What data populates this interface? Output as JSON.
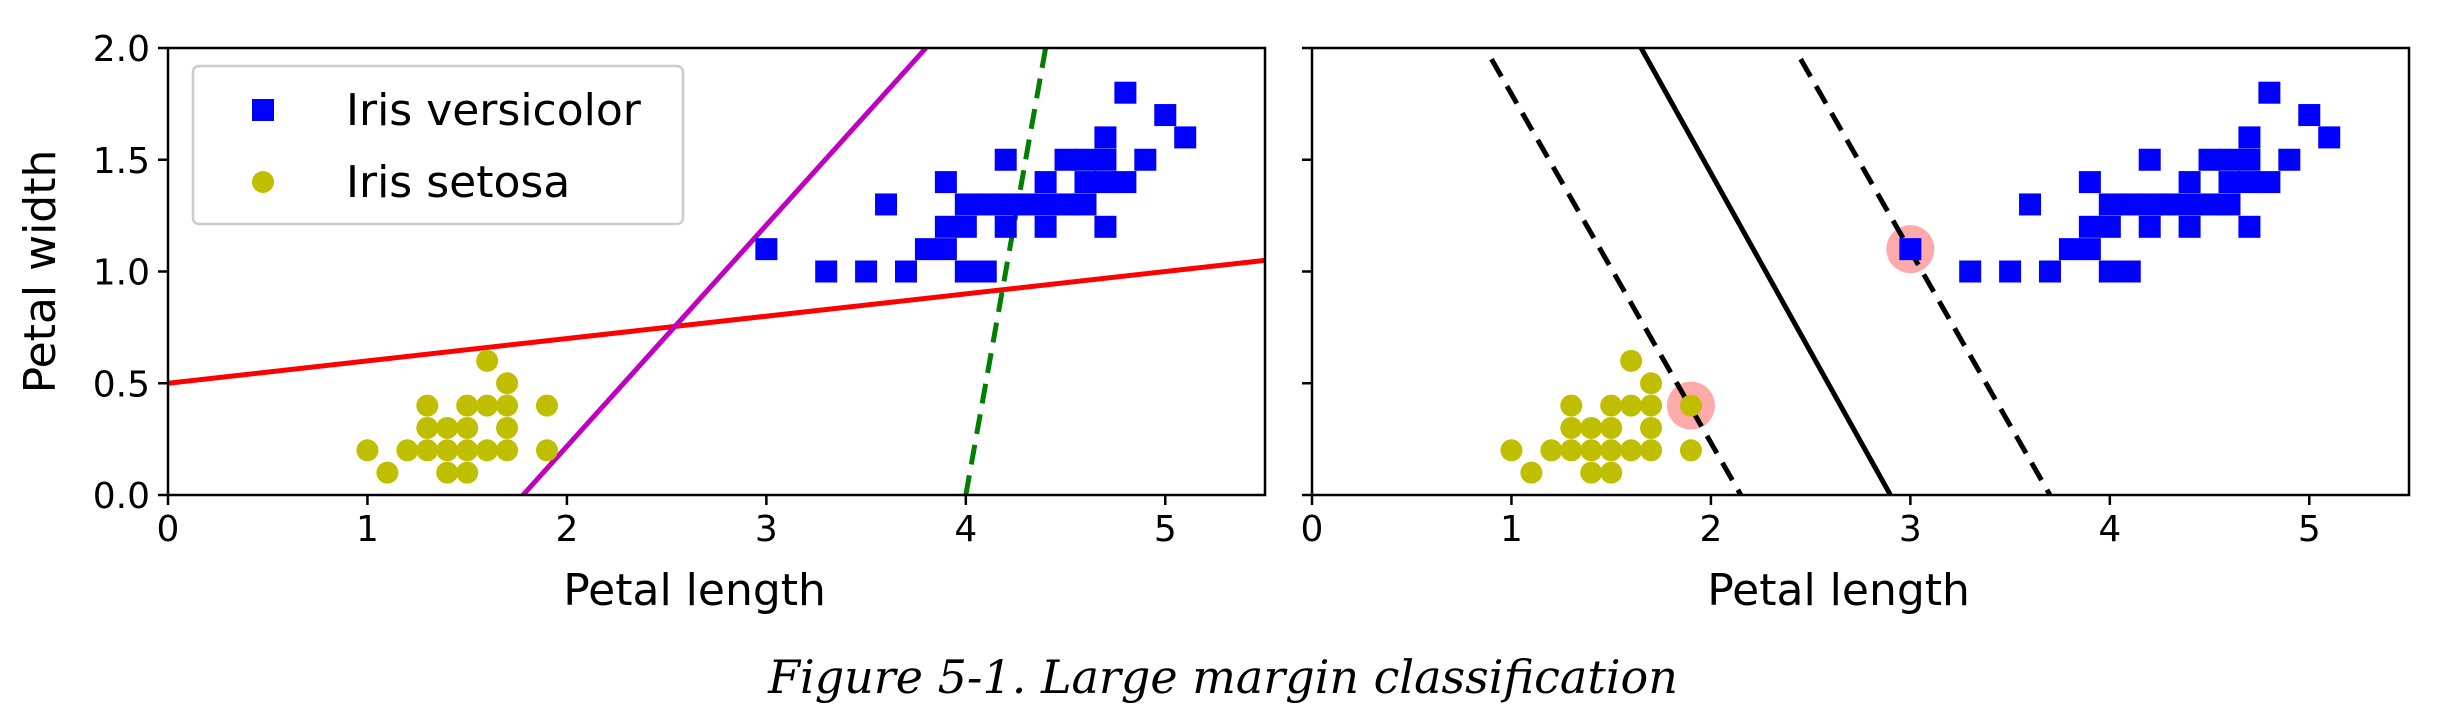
{
  "caption": "Figure 5-1. Large margin classification",
  "chart_data": [
    {
      "type": "scatter",
      "xlabel": "Petal length",
      "ylabel": "Petal width",
      "xlim": [
        0,
        5.5
      ],
      "ylim": [
        0,
        2.0
      ],
      "xticks": [
        "0",
        "1",
        "2",
        "3",
        "4",
        "5"
      ],
      "yticks": [
        "0.0",
        "0.5",
        "1.0",
        "1.5",
        "2.0"
      ],
      "legend_position": "top-left",
      "series": [
        {
          "name": "Iris versicolor",
          "marker": "square",
          "color": "#0000ff",
          "points": [
            [
              3.0,
              1.1
            ],
            [
              3.3,
              1.0
            ],
            [
              3.5,
              1.0
            ],
            [
              3.6,
              1.3
            ],
            [
              3.7,
              1.0
            ],
            [
              3.8,
              1.1
            ],
            [
              3.9,
              1.1
            ],
            [
              3.9,
              1.2
            ],
            [
              3.9,
              1.4
            ],
            [
              4.0,
              1.0
            ],
            [
              4.0,
              1.2
            ],
            [
              4.0,
              1.3
            ],
            [
              4.1,
              1.0
            ],
            [
              4.1,
              1.3
            ],
            [
              4.2,
              1.2
            ],
            [
              4.2,
              1.3
            ],
            [
              4.2,
              1.5
            ],
            [
              4.3,
              1.3
            ],
            [
              4.4,
              1.2
            ],
            [
              4.4,
              1.3
            ],
            [
              4.4,
              1.4
            ],
            [
              4.5,
              1.3
            ],
            [
              4.5,
              1.5
            ],
            [
              4.6,
              1.3
            ],
            [
              4.6,
              1.4
            ],
            [
              4.6,
              1.5
            ],
            [
              4.7,
              1.2
            ],
            [
              4.7,
              1.4
            ],
            [
              4.7,
              1.5
            ],
            [
              4.7,
              1.6
            ],
            [
              4.8,
              1.4
            ],
            [
              4.8,
              1.8
            ],
            [
              4.9,
              1.5
            ],
            [
              5.0,
              1.7
            ],
            [
              5.1,
              1.6
            ]
          ]
        },
        {
          "name": "Iris setosa",
          "marker": "circle",
          "color": "#bfbf00",
          "points": [
            [
              1.0,
              0.2
            ],
            [
              1.1,
              0.1
            ],
            [
              1.2,
              0.2
            ],
            [
              1.3,
              0.2
            ],
            [
              1.3,
              0.3
            ],
            [
              1.3,
              0.4
            ],
            [
              1.4,
              0.1
            ],
            [
              1.4,
              0.2
            ],
            [
              1.4,
              0.3
            ],
            [
              1.5,
              0.1
            ],
            [
              1.5,
              0.2
            ],
            [
              1.5,
              0.3
            ],
            [
              1.5,
              0.4
            ],
            [
              1.6,
              0.2
            ],
            [
              1.6,
              0.4
            ],
            [
              1.6,
              0.6
            ],
            [
              1.7,
              0.2
            ],
            [
              1.7,
              0.3
            ],
            [
              1.7,
              0.4
            ],
            [
              1.7,
              0.5
            ],
            [
              1.9,
              0.2
            ],
            [
              1.9,
              0.4
            ]
          ]
        }
      ],
      "lines": [
        {
          "color": "#ff0000",
          "style": "solid",
          "points": [
            [
              0,
              0.5
            ],
            [
              5.5,
              1.05
            ]
          ]
        },
        {
          "color": "#c000c0",
          "style": "solid",
          "points": [
            [
              1.78,
              0
            ],
            [
              3.8,
              2.0
            ]
          ]
        },
        {
          "color": "#007f00",
          "style": "dashed",
          "points": [
            [
              4.0,
              0
            ],
            [
              4.4,
              2.0
            ]
          ]
        }
      ]
    },
    {
      "type": "scatter",
      "xlabel": "Petal length",
      "ylabel": "",
      "xlim": [
        0,
        5.5
      ],
      "ylim": [
        0,
        2.0
      ],
      "xticks": [
        "0",
        "1",
        "2",
        "3",
        "4",
        "5"
      ],
      "series": [
        {
          "name": "",
          "marker": "square",
          "color": "#0000ff",
          "points": [
            [
              3.0,
              1.1
            ],
            [
              3.3,
              1.0
            ],
            [
              3.5,
              1.0
            ],
            [
              3.6,
              1.3
            ],
            [
              3.7,
              1.0
            ],
            [
              3.8,
              1.1
            ],
            [
              3.9,
              1.1
            ],
            [
              3.9,
              1.2
            ],
            [
              3.9,
              1.4
            ],
            [
              4.0,
              1.0
            ],
            [
              4.0,
              1.2
            ],
            [
              4.0,
              1.3
            ],
            [
              4.1,
              1.0
            ],
            [
              4.1,
              1.3
            ],
            [
              4.2,
              1.2
            ],
            [
              4.2,
              1.3
            ],
            [
              4.2,
              1.5
            ],
            [
              4.3,
              1.3
            ],
            [
              4.4,
              1.2
            ],
            [
              4.4,
              1.3
            ],
            [
              4.4,
              1.4
            ],
            [
              4.5,
              1.3
            ],
            [
              4.5,
              1.5
            ],
            [
              4.6,
              1.3
            ],
            [
              4.6,
              1.4
            ],
            [
              4.6,
              1.5
            ],
            [
              4.7,
              1.2
            ],
            [
              4.7,
              1.4
            ],
            [
              4.7,
              1.5
            ],
            [
              4.7,
              1.6
            ],
            [
              4.8,
              1.4
            ],
            [
              4.8,
              1.8
            ],
            [
              4.9,
              1.5
            ],
            [
              5.0,
              1.7
            ],
            [
              5.1,
              1.6
            ]
          ]
        },
        {
          "name": "",
          "marker": "circle",
          "color": "#bfbf00",
          "points": [
            [
              1.0,
              0.2
            ],
            [
              1.1,
              0.1
            ],
            [
              1.2,
              0.2
            ],
            [
              1.3,
              0.2
            ],
            [
              1.3,
              0.3
            ],
            [
              1.3,
              0.4
            ],
            [
              1.4,
              0.1
            ],
            [
              1.4,
              0.2
            ],
            [
              1.4,
              0.3
            ],
            [
              1.5,
              0.1
            ],
            [
              1.5,
              0.2
            ],
            [
              1.5,
              0.3
            ],
            [
              1.5,
              0.4
            ],
            [
              1.6,
              0.2
            ],
            [
              1.6,
              0.4
            ],
            [
              1.6,
              0.6
            ],
            [
              1.7,
              0.2
            ],
            [
              1.7,
              0.3
            ],
            [
              1.7,
              0.4
            ],
            [
              1.7,
              0.5
            ],
            [
              1.9,
              0.2
            ],
            [
              1.9,
              0.4
            ]
          ]
        }
      ],
      "support_vectors": [
        [
          1.9,
          0.4
        ],
        [
          3.0,
          1.1
        ]
      ],
      "support_vector_color": "#ffaaaa",
      "lines": [
        {
          "color": "#000000",
          "style": "solid",
          "points": [
            [
              1.65,
              2.0
            ],
            [
              2.9,
              0
            ]
          ]
        },
        {
          "color": "#000000",
          "style": "dashed",
          "points": [
            [
              0.9,
              1.95
            ],
            [
              2.15,
              0
            ]
          ]
        },
        {
          "color": "#000000",
          "style": "dashed",
          "points": [
            [
              2.45,
              1.95
            ],
            [
              3.7,
              0
            ]
          ]
        }
      ]
    }
  ]
}
